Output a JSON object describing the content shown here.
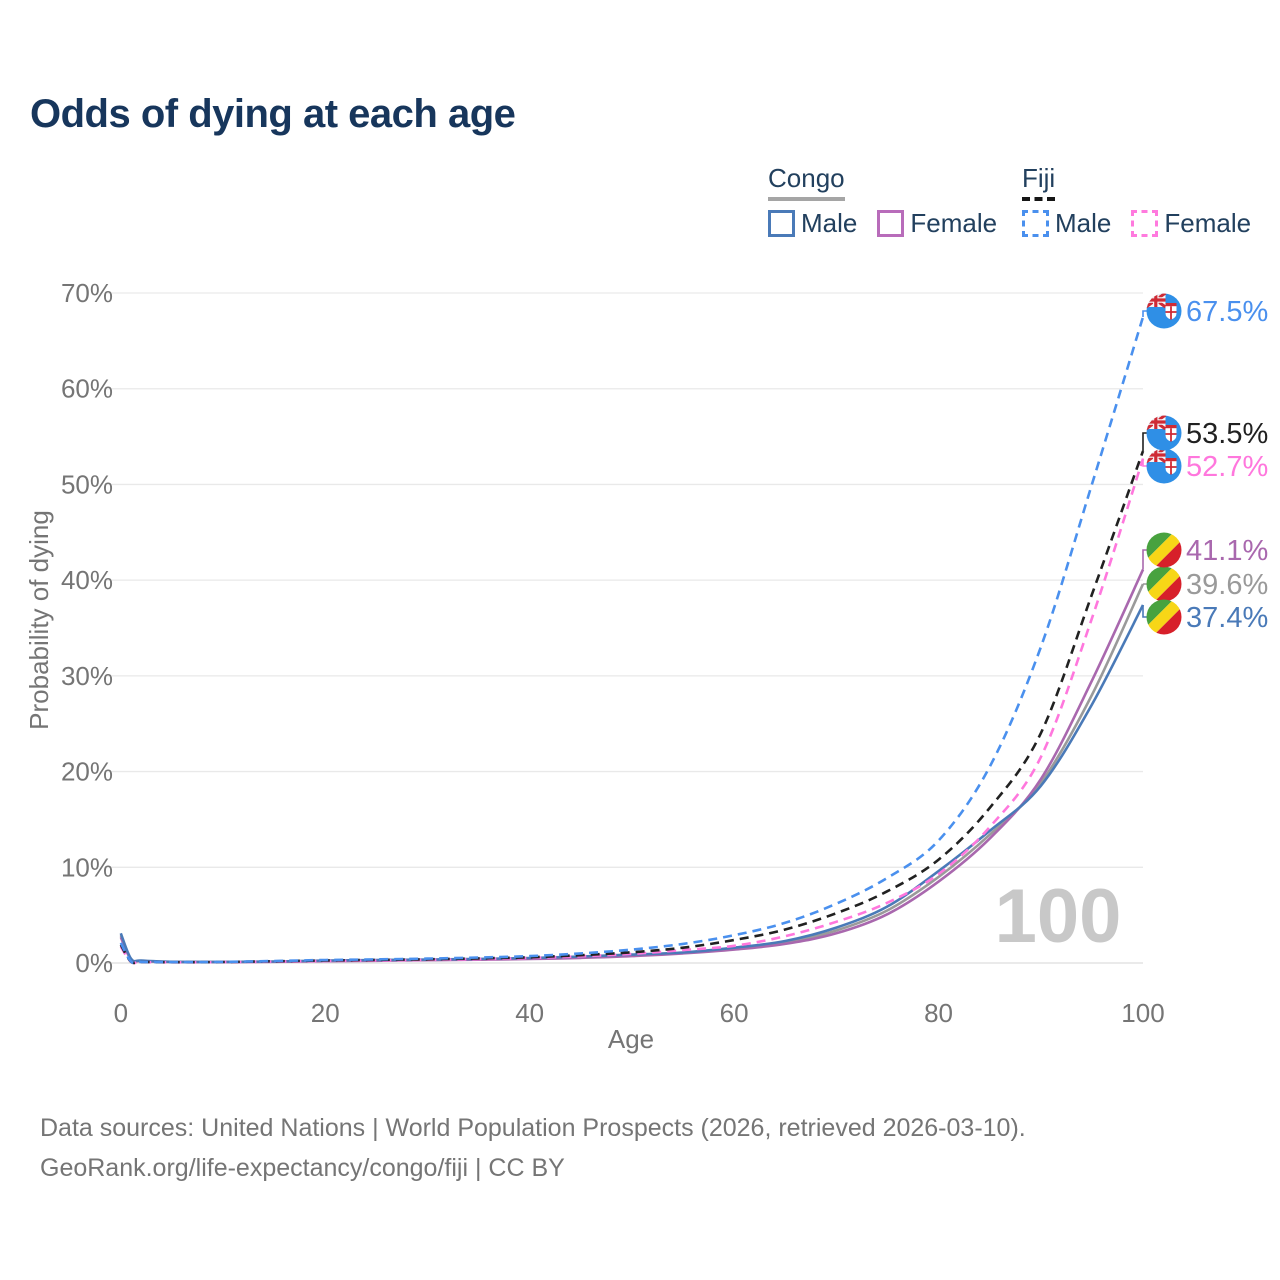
{
  "title": "Odds of dying at each age",
  "legend": {
    "groups": [
      {
        "id": "congo",
        "label": "Congo",
        "underline_style": "solid",
        "underline_color": "#a5a5a5",
        "items": [
          {
            "id": "congo-male",
            "label": "Male",
            "color": "#4a7ab8",
            "dash": false
          },
          {
            "id": "congo-female",
            "label": "Female",
            "color": "#b86cba",
            "dash": false
          }
        ]
      },
      {
        "id": "fiji",
        "label": "Fiji",
        "underline_style": "dashed",
        "underline_color": "#161616",
        "items": [
          {
            "id": "fiji-male",
            "label": "Male",
            "color": "#4a90ee",
            "dash": true
          },
          {
            "id": "fiji-female",
            "label": "Female",
            "color": "#ff7ade",
            "dash": true
          }
        ]
      }
    ]
  },
  "chart_data": {
    "type": "line",
    "title": "Odds of dying at each age",
    "xlabel": "Age",
    "ylabel": "Probability of dying",
    "xlim": [
      0,
      100
    ],
    "ylim": [
      0,
      70
    ],
    "x_ticks": [
      0,
      20,
      40,
      60,
      80,
      100
    ],
    "y_ticks": [
      0,
      10,
      20,
      30,
      40,
      50,
      60,
      70
    ],
    "y_tick_suffix": "%",
    "grid": true,
    "legend_position": "top-right",
    "watermark": "100",
    "ages": [
      0,
      1,
      2,
      5,
      10,
      15,
      20,
      25,
      30,
      35,
      40,
      45,
      50,
      55,
      60,
      65,
      70,
      75,
      80,
      85,
      90,
      95,
      100
    ],
    "series": [
      {
        "id": "congo-both",
        "name": "Congo Both sexes",
        "country": "Congo",
        "sex": "Both",
        "color": "#9a9a9a",
        "dash": false,
        "flag": "congo",
        "end_label": "39.6%",
        "values": [
          2.9,
          0.4,
          0.22,
          0.12,
          0.1,
          0.14,
          0.22,
          0.27,
          0.32,
          0.38,
          0.47,
          0.6,
          0.8,
          1.05,
          1.5,
          2.15,
          3.4,
          5.5,
          9.0,
          13.4,
          18.8,
          28.0,
          39.6
        ]
      },
      {
        "id": "congo-female",
        "name": "Congo Female",
        "country": "Congo",
        "sex": "Female",
        "color": "#a968ae",
        "dash": false,
        "flag": "congo",
        "end_label": "41.1%",
        "values": [
          2.7,
          0.36,
          0.2,
          0.11,
          0.09,
          0.13,
          0.19,
          0.23,
          0.29,
          0.34,
          0.42,
          0.53,
          0.72,
          1.0,
          1.4,
          2.0,
          3.1,
          5.1,
          8.5,
          13.0,
          19.2,
          29.5,
          41.1
        ]
      },
      {
        "id": "congo-male",
        "name": "Congo Male",
        "country": "Congo",
        "sex": "Male",
        "color": "#4a7ab8",
        "dash": false,
        "flag": "congo",
        "end_label": "37.4%",
        "values": [
          3.1,
          0.45,
          0.25,
          0.13,
          0.11,
          0.16,
          0.26,
          0.31,
          0.36,
          0.43,
          0.52,
          0.68,
          0.88,
          1.1,
          1.6,
          2.3,
          3.7,
          5.9,
          9.6,
          13.8,
          18.5,
          27.0,
          37.4
        ]
      },
      {
        "id": "fiji-female",
        "name": "Fiji Female",
        "country": "Fiji",
        "sex": "Female",
        "color": "#ff77dd",
        "dash": true,
        "flag": "fiji",
        "end_label": "52.7%",
        "values": [
          1.7,
          0.13,
          0.09,
          0.07,
          0.09,
          0.15,
          0.21,
          0.26,
          0.33,
          0.41,
          0.52,
          0.7,
          0.95,
          1.35,
          1.8,
          2.8,
          4.3,
          6.3,
          9.3,
          14.2,
          21.5,
          36.0,
          52.7
        ]
      },
      {
        "id": "fiji-both",
        "name": "Fiji Both sexes",
        "country": "Fiji",
        "sex": "Both",
        "color": "#212121",
        "dash": true,
        "flag": "fiji",
        "end_label": "53.5%",
        "values": [
          1.9,
          0.14,
          0.1,
          0.08,
          0.1,
          0.18,
          0.26,
          0.32,
          0.39,
          0.48,
          0.6,
          0.82,
          1.12,
          1.6,
          2.4,
          3.5,
          5.2,
          7.5,
          10.8,
          16.2,
          24.0,
          38.5,
          53.5
        ]
      },
      {
        "id": "fiji-male",
        "name": "Fiji Male",
        "country": "Fiji",
        "sex": "Male",
        "color": "#4a90ee",
        "dash": true,
        "flag": "fiji",
        "end_label": "67.5%",
        "values": [
          2.1,
          0.16,
          0.11,
          0.09,
          0.11,
          0.21,
          0.31,
          0.38,
          0.46,
          0.57,
          0.72,
          1.0,
          1.4,
          2.0,
          2.9,
          4.2,
          6.2,
          8.9,
          12.8,
          20.5,
          33.0,
          50.0,
          67.5
        ]
      }
    ],
    "flag_colors": {
      "congo": {
        "green": "#48a23f",
        "yellow": "#f7d617",
        "red": "#d7202a"
      },
      "fiji": {
        "blue": "#2f8fe6",
        "red": "#cf2b35",
        "white": "#f5f6f8"
      }
    }
  },
  "footer": {
    "line1": "Data sources: United Nations | World Population Prospects (2026, retrieved 2026-03-10).",
    "line2": "GeoRank.org/life-expectancy/congo/fiji | CC BY"
  }
}
